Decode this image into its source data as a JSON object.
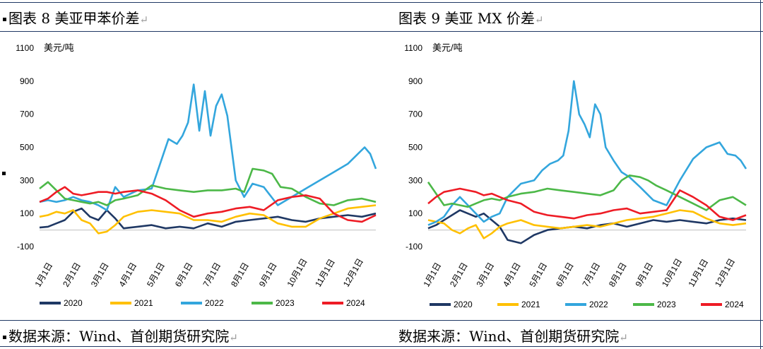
{
  "left": {
    "title": "图表 8 美亚甲苯价差",
    "source": "数据来源：Wind、首创期货研究院"
  },
  "right": {
    "title": "图表 9 美亚 MX 价差",
    "source": "数据来源：Wind、首创期货研究院"
  },
  "return_mark": "↵",
  "colors": {
    "2020": "#1f3864",
    "2021": "#ffc000",
    "2022": "#33a6dd",
    "2023": "#4cb848",
    "2024": "#ee1c25",
    "grid": "#d9d9d9"
  },
  "chart_data": [
    {
      "type": "line",
      "unit": "美元/吨",
      "ylim": [
        -100,
        1100
      ],
      "yticks": [
        "-100",
        "100",
        "300",
        "500",
        "700",
        "900",
        "1100"
      ],
      "x_ticks": [
        "1月1日",
        "2月1日",
        "3月1日",
        "4月1日",
        "5月1日",
        "6月1日",
        "7月1日",
        "8月1日",
        "9月1日",
        "10月1日",
        "11月1日",
        "12月1日"
      ],
      "x_months": [
        1,
        2,
        3,
        4,
        5,
        6,
        7,
        8,
        9,
        10,
        11,
        12,
        13
      ],
      "legend": [
        "2020",
        "2021",
        "2022",
        "2023",
        "2024"
      ],
      "legend_position": "bottom",
      "grid": false,
      "series": [
        {
          "name": "2020",
          "x": [
            1,
            1.3,
            1.6,
            1.9,
            2.2,
            2.5,
            2.8,
            3.1,
            3.4,
            3.7,
            4,
            4.5,
            5,
            5.5,
            6,
            6.5,
            7,
            7.5,
            8,
            8.5,
            9,
            9.5,
            10,
            10.5,
            11,
            11.5,
            12,
            12.5,
            13
          ],
          "y": [
            15,
            20,
            40,
            60,
            110,
            130,
            80,
            60,
            120,
            70,
            10,
            20,
            30,
            10,
            20,
            10,
            40,
            20,
            50,
            60,
            70,
            80,
            60,
            50,
            70,
            80,
            90,
            80,
            100
          ]
        },
        {
          "name": "2021",
          "x": [
            1,
            1.3,
            1.6,
            1.9,
            2.2,
            2.5,
            2.8,
            3.1,
            3.4,
            3.7,
            4,
            4.5,
            5,
            5.5,
            6,
            6.5,
            7,
            7.5,
            8,
            8.5,
            9,
            9.5,
            10,
            10.5,
            11,
            11.5,
            12,
            12.5,
            13
          ],
          "y": [
            80,
            90,
            110,
            100,
            120,
            60,
            40,
            -20,
            -10,
            30,
            80,
            110,
            120,
            110,
            100,
            60,
            60,
            50,
            80,
            100,
            90,
            40,
            20,
            20,
            70,
            100,
            130,
            140,
            150
          ]
        },
        {
          "name": "2022",
          "x": [
            1,
            1.3,
            1.6,
            1.9,
            2.2,
            2.5,
            2.8,
            3.1,
            3.4,
            3.7,
            4,
            4.5,
            5,
            5.3,
            5.6,
            5.9,
            6.1,
            6.3,
            6.5,
            6.7,
            6.9,
            7.1,
            7.3,
            7.5,
            7.7,
            8,
            8.3,
            8.6,
            9,
            9.5,
            10,
            10.5,
            11,
            11.5,
            12,
            12.3,
            12.6,
            12.8,
            13
          ],
          "y": [
            170,
            180,
            170,
            180,
            200,
            180,
            170,
            150,
            120,
            260,
            200,
            240,
            250,
            400,
            550,
            520,
            570,
            650,
            880,
            600,
            840,
            570,
            750,
            820,
            690,
            300,
            200,
            280,
            260,
            150,
            200,
            250,
            300,
            350,
            400,
            450,
            500,
            460,
            370
          ]
        },
        {
          "name": "2023",
          "x": [
            1,
            1.3,
            1.6,
            1.9,
            2.2,
            2.5,
            2.8,
            3.1,
            3.4,
            3.7,
            4,
            4.5,
            5,
            5.5,
            6,
            6.5,
            7,
            7.5,
            8,
            8.3,
            8.6,
            9,
            9.3,
            9.6,
            10,
            10.5,
            11,
            11.5,
            12,
            12.5,
            13
          ],
          "y": [
            250,
            290,
            240,
            190,
            180,
            170,
            160,
            170,
            150,
            180,
            190,
            210,
            270,
            250,
            240,
            230,
            240,
            240,
            250,
            230,
            370,
            360,
            340,
            260,
            250,
            200,
            160,
            150,
            180,
            190,
            170
          ]
        },
        {
          "name": "2024",
          "x": [
            1,
            1.3,
            1.6,
            1.9,
            2.2,
            2.5,
            2.8,
            3.1,
            3.4,
            3.7,
            4,
            4.5,
            5,
            5.5,
            6,
            6.5,
            7,
            7.5,
            8,
            8.5,
            9,
            9.5,
            10,
            10.5,
            11,
            11.5,
            12,
            12.5,
            13
          ],
          "y": [
            170,
            190,
            230,
            260,
            220,
            210,
            220,
            230,
            230,
            220,
            230,
            240,
            220,
            180,
            120,
            80,
            100,
            110,
            130,
            140,
            120,
            180,
            200,
            210,
            190,
            100,
            60,
            50,
            90
          ]
        }
      ]
    },
    {
      "type": "line",
      "unit": "美元/吨",
      "ylim": [
        -100,
        1100
      ],
      "yticks": [
        "-100",
        "100",
        "300",
        "500",
        "700",
        "900",
        "1100"
      ],
      "x_ticks": [
        "1月1日",
        "2月1日",
        "3月1日",
        "4月1日",
        "5月1日",
        "6月1日",
        "7月1日",
        "8月1日",
        "9月1日",
        "10月1日",
        "11月1日",
        "12月1日"
      ],
      "x_months": [
        1,
        2,
        3,
        4,
        5,
        6,
        7,
        8,
        9,
        10,
        11,
        12,
        13
      ],
      "legend": [
        "2020",
        "2021",
        "2022",
        "2023",
        "2024"
      ],
      "legend_position": "bottom",
      "grid": false,
      "series": [
        {
          "name": "2020",
          "x": [
            1,
            1.3,
            1.6,
            1.9,
            2.2,
            2.5,
            2.8,
            3.1,
            3.4,
            3.7,
            4,
            4.5,
            5,
            5.5,
            6,
            6.5,
            7,
            7.5,
            8,
            8.5,
            9,
            9.5,
            10,
            10.5,
            11,
            11.5,
            12,
            12.5,
            13
          ],
          "y": [
            10,
            30,
            60,
            90,
            120,
            100,
            80,
            100,
            60,
            20,
            -60,
            -80,
            -30,
            0,
            10,
            20,
            10,
            30,
            40,
            20,
            40,
            60,
            50,
            60,
            50,
            40,
            60,
            70,
            60
          ]
        },
        {
          "name": "2021",
          "x": [
            1,
            1.3,
            1.6,
            1.9,
            2.2,
            2.5,
            2.8,
            3.1,
            3.4,
            3.7,
            4,
            4.5,
            5,
            5.5,
            6,
            6.5,
            7,
            7.5,
            8,
            8.5,
            9,
            9.5,
            10,
            10.5,
            11,
            11.5,
            12,
            12.5,
            13
          ],
          "y": [
            60,
            50,
            40,
            0,
            -20,
            10,
            30,
            -50,
            -20,
            20,
            40,
            60,
            30,
            20,
            10,
            20,
            30,
            20,
            40,
            60,
            70,
            80,
            100,
            120,
            110,
            70,
            40,
            30,
            40
          ]
        },
        {
          "name": "2022",
          "x": [
            1,
            1.3,
            1.6,
            1.9,
            2.2,
            2.5,
            2.8,
            3.1,
            3.4,
            3.7,
            4,
            4.5,
            5,
            5.3,
            5.6,
            5.9,
            6.1,
            6.3,
            6.5,
            6.7,
            6.9,
            7.1,
            7.3,
            7.5,
            7.7,
            8,
            8.3,
            8.6,
            9,
            9.5,
            10,
            10.5,
            11,
            11.5,
            12,
            12.3,
            12.6,
            12.8,
            13
          ],
          "y": [
            30,
            50,
            80,
            150,
            200,
            150,
            100,
            50,
            80,
            100,
            200,
            280,
            300,
            360,
            400,
            420,
            450,
            600,
            900,
            700,
            640,
            560,
            760,
            700,
            500,
            420,
            350,
            320,
            260,
            180,
            150,
            300,
            430,
            500,
            530,
            460,
            450,
            420,
            370
          ]
        },
        {
          "name": "2023",
          "x": [
            1,
            1.3,
            1.6,
            1.9,
            2.2,
            2.5,
            2.8,
            3.1,
            3.4,
            3.7,
            4,
            4.5,
            5,
            5.5,
            6,
            6.5,
            7,
            7.5,
            8,
            8.3,
            8.6,
            9,
            9.3,
            9.6,
            10,
            10.5,
            11,
            11.5,
            12,
            12.5,
            13
          ],
          "y": [
            290,
            220,
            150,
            160,
            150,
            140,
            160,
            180,
            190,
            180,
            200,
            220,
            230,
            250,
            240,
            230,
            220,
            210,
            240,
            300,
            330,
            320,
            300,
            270,
            240,
            200,
            160,
            120,
            180,
            200,
            150
          ]
        },
        {
          "name": "2024",
          "x": [
            1,
            1.3,
            1.6,
            1.9,
            2.2,
            2.5,
            2.8,
            3.1,
            3.4,
            3.7,
            4,
            4.5,
            5,
            5.5,
            6,
            6.5,
            7,
            7.5,
            8,
            8.5,
            9,
            9.5,
            10,
            10.5,
            11,
            11.5,
            12,
            12.5,
            13
          ],
          "y": [
            160,
            200,
            230,
            240,
            250,
            240,
            230,
            210,
            220,
            200,
            180,
            160,
            110,
            90,
            80,
            70,
            90,
            100,
            120,
            130,
            100,
            110,
            120,
            240,
            200,
            150,
            80,
            60,
            90
          ]
        }
      ]
    }
  ]
}
